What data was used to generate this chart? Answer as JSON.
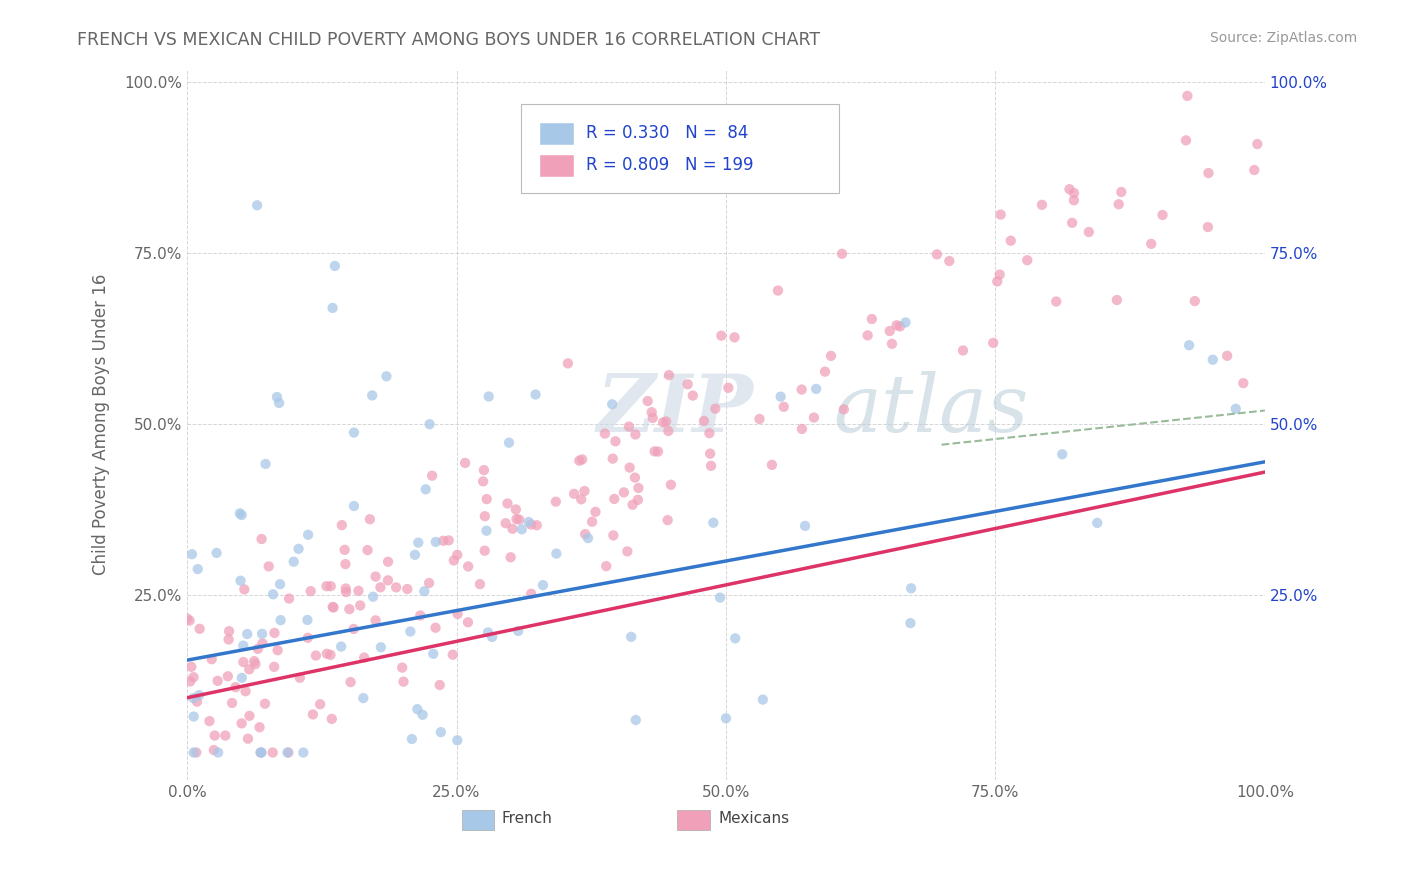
{
  "title": "FRENCH VS MEXICAN CHILD POVERTY AMONG BOYS UNDER 16 CORRELATION CHART",
  "source": "Source: ZipAtlas.com",
  "ylabel": "Child Poverty Among Boys Under 16",
  "xlim": [
    0.0,
    1.0
  ],
  "ylim": [
    -0.02,
    1.02
  ],
  "french_R": "0.330",
  "french_N": "84",
  "mexican_R": "0.809",
  "mexican_N": "199",
  "french_color": "#a8c8e8",
  "mexican_color": "#f0a0b8",
  "french_line_color": "#3377cc",
  "mexican_line_color": "#dd3366",
  "dashed_line_color": "#99bb99",
  "watermark_color": "#d0dde8",
  "watermark_text_color": "#c8d5e0",
  "background_color": "#ffffff",
  "grid_color": "#cccccc",
  "legend_text_color": "#2244cc",
  "title_color": "#666666",
  "source_color": "#999999",
  "tick_color": "#666666",
  "right_tick_color": "#2244cc",
  "french_line_start_y": 0.155,
  "french_line_end_y": 0.445,
  "mexican_line_start_y": 0.1,
  "mexican_line_end_y": 0.43,
  "dashed_line_start_x": 0.7,
  "dashed_line_start_y": 0.47,
  "dashed_line_end_x": 1.0,
  "dashed_line_end_y": 0.52
}
